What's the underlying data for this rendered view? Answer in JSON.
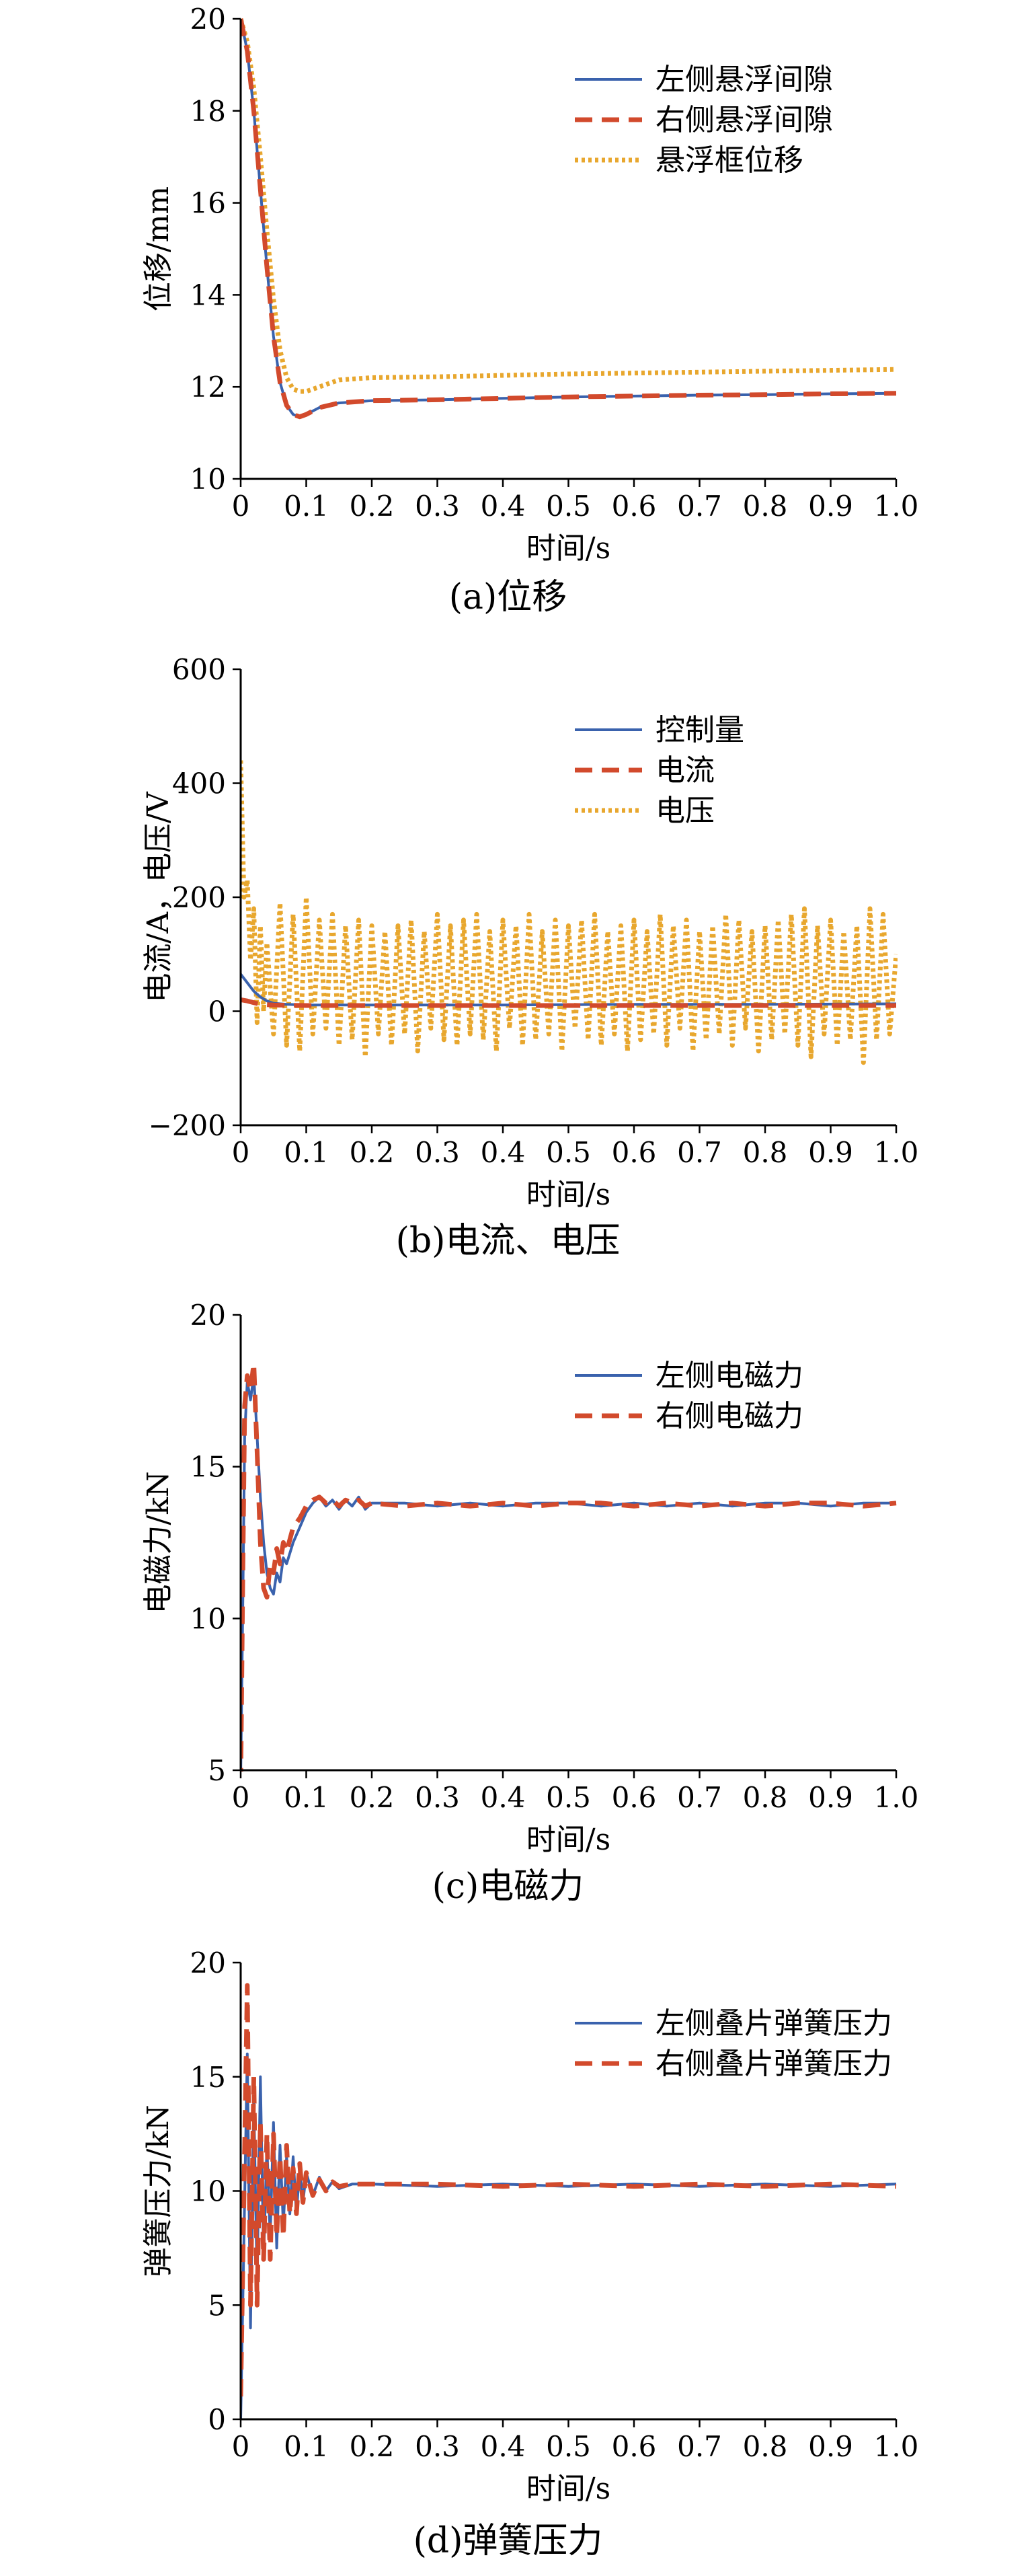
{
  "chart_data": [
    {
      "type": "line",
      "caption": "(a)位移",
      "xlabel": "时间/s",
      "ylabel": "位移/mm",
      "xlim": [
        0,
        1.0
      ],
      "ylim": [
        10,
        20
      ],
      "xticks": [
        "0",
        "0.1",
        "0.2",
        "0.3",
        "0.4",
        "0.5",
        "0.6",
        "0.7",
        "0.8",
        "0.9",
        "1.0"
      ],
      "yticks": [
        "10",
        "12",
        "14",
        "16",
        "18",
        "20"
      ],
      "legend": "top-right",
      "series": [
        {
          "name": "左侧悬浮间隙",
          "color": "#3a62ad",
          "style": "solid",
          "x": [
            0,
            0.01,
            0.02,
            0.03,
            0.04,
            0.05,
            0.06,
            0.07,
            0.08,
            0.09,
            0.1,
            0.12,
            0.15,
            0.2,
            0.3,
            0.4,
            0.5,
            0.6,
            0.7,
            0.8,
            0.9,
            1.0
          ],
          "y": [
            20,
            19.3,
            18.0,
            16.3,
            14.6,
            13.1,
            12.1,
            11.6,
            11.4,
            11.35,
            11.4,
            11.55,
            11.65,
            11.7,
            11.72,
            11.75,
            11.78,
            11.8,
            11.82,
            11.83,
            11.85,
            11.86
          ]
        },
        {
          "name": "右侧悬浮间隙",
          "color": "#d24a2c",
          "style": "dashed",
          "x": [
            0,
            0.01,
            0.02,
            0.03,
            0.04,
            0.05,
            0.06,
            0.07,
            0.08,
            0.09,
            0.1,
            0.12,
            0.15,
            0.2,
            0.3,
            0.4,
            0.5,
            0.6,
            0.7,
            0.8,
            0.9,
            1.0
          ],
          "y": [
            20,
            19.3,
            18.0,
            16.3,
            14.6,
            13.1,
            12.1,
            11.6,
            11.4,
            11.35,
            11.4,
            11.55,
            11.65,
            11.7,
            11.72,
            11.75,
            11.78,
            11.8,
            11.82,
            11.83,
            11.85,
            11.86
          ]
        },
        {
          "name": "悬浮框位移",
          "color": "#e8a72e",
          "style": "dotted",
          "x": [
            0,
            0.01,
            0.02,
            0.03,
            0.04,
            0.05,
            0.06,
            0.07,
            0.08,
            0.09,
            0.1,
            0.12,
            0.15,
            0.2,
            0.3,
            0.4,
            0.5,
            0.6,
            0.7,
            0.8,
            0.9,
            1.0
          ],
          "y": [
            20,
            19.5,
            18.5,
            17.0,
            15.4,
            13.9,
            12.8,
            12.2,
            11.95,
            11.9,
            11.9,
            12.0,
            12.15,
            12.2,
            12.22,
            12.25,
            12.28,
            12.3,
            12.32,
            12.34,
            12.36,
            12.38
          ]
        }
      ]
    },
    {
      "type": "line",
      "caption": "(b)电流、电压",
      "xlabel": "时间/s",
      "ylabel": "电流/A，电压/V",
      "xlim": [
        0,
        1.0
      ],
      "ylim": [
        -200,
        600
      ],
      "xticks": [
        "0",
        "0.1",
        "0.2",
        "0.3",
        "0.4",
        "0.5",
        "0.6",
        "0.7",
        "0.8",
        "0.9",
        "1.0"
      ],
      "yticks": [
        "−200",
        "0",
        "200",
        "400",
        "600"
      ],
      "legend": "top-right",
      "series": [
        {
          "name": "控制量",
          "color": "#3a62ad",
          "style": "solid",
          "x": [
            0,
            0.01,
            0.02,
            0.03,
            0.04,
            0.05,
            0.07,
            0.1,
            0.2,
            0.4,
            0.6,
            0.8,
            1.0
          ],
          "y": [
            65,
            50,
            35,
            25,
            18,
            14,
            12,
            11,
            11,
            11,
            12,
            12,
            13
          ]
        },
        {
          "name": "电流",
          "color": "#d24a2c",
          "style": "dashed",
          "x": [
            0,
            0.01,
            0.02,
            0.03,
            0.05,
            0.1,
            0.3,
            0.5,
            0.7,
            1.0
          ],
          "y": [
            20,
            18,
            15,
            12,
            11,
            10,
            10,
            10,
            10,
            10
          ]
        },
        {
          "name": "电压",
          "color": "#e8a72e",
          "style": "dotted",
          "x": [
            0,
            0.005,
            0.01,
            0.015,
            0.02,
            0.025,
            0.03,
            0.035,
            0.04,
            0.05,
            0.06,
            0.07,
            0.08,
            0.09,
            0.1,
            0.11,
            0.12,
            0.13,
            0.14,
            0.15,
            0.16,
            0.17,
            0.18,
            0.19,
            0.2,
            0.21,
            0.22,
            0.23,
            0.24,
            0.25,
            0.26,
            0.27,
            0.28,
            0.29,
            0.3,
            0.31,
            0.32,
            0.33,
            0.34,
            0.35,
            0.36,
            0.37,
            0.38,
            0.39,
            0.4,
            0.41,
            0.42,
            0.43,
            0.44,
            0.45,
            0.46,
            0.47,
            0.48,
            0.49,
            0.5,
            0.51,
            0.52,
            0.53,
            0.54,
            0.55,
            0.56,
            0.57,
            0.58,
            0.59,
            0.6,
            0.61,
            0.62,
            0.63,
            0.64,
            0.65,
            0.66,
            0.67,
            0.68,
            0.69,
            0.7,
            0.71,
            0.72,
            0.73,
            0.74,
            0.75,
            0.76,
            0.77,
            0.78,
            0.79,
            0.8,
            0.81,
            0.82,
            0.83,
            0.84,
            0.85,
            0.86,
            0.87,
            0.88,
            0.89,
            0.9,
            0.91,
            0.92,
            0.93,
            0.94,
            0.95,
            0.96,
            0.97,
            0.98,
            0.99,
            1.0
          ],
          "y": [
            440,
            200,
            230,
            90,
            180,
            -20,
            150,
            0,
            120,
            -40,
            190,
            -60,
            170,
            -70,
            200,
            -40,
            160,
            -30,
            170,
            -60,
            150,
            -50,
            160,
            -80,
            150,
            -40,
            140,
            -60,
            150,
            -40,
            160,
            -70,
            140,
            -30,
            170,
            -50,
            150,
            -60,
            160,
            -40,
            170,
            -50,
            140,
            -70,
            160,
            -30,
            150,
            -60,
            170,
            -50,
            140,
            -40,
            160,
            -70,
            150,
            -30,
            160,
            -50,
            170,
            -60,
            140,
            -40,
            150,
            -70,
            160,
            -50,
            140,
            -40,
            170,
            -60,
            150,
            -30,
            160,
            -70,
            140,
            -50,
            150,
            -40,
            170,
            -60,
            160,
            -30,
            140,
            -70,
            150,
            -50,
            160,
            -40,
            170,
            -60,
            180,
            -80,
            150,
            -40,
            160,
            -60,
            140,
            -50,
            150,
            -90,
            180,
            -50,
            170,
            -40,
            100
          ]
        }
      ]
    },
    {
      "type": "line",
      "caption": "(c)电磁力",
      "xlabel": "时间/s",
      "ylabel": "电磁力/kN",
      "xlim": [
        0,
        1.0
      ],
      "ylim": [
        5,
        20
      ],
      "xticks": [
        "0",
        "0.1",
        "0.2",
        "0.3",
        "0.4",
        "0.5",
        "0.6",
        "0.7",
        "0.8",
        "0.9",
        "1.0"
      ],
      "yticks": [
        "5",
        "10",
        "15",
        "20"
      ],
      "legend": "top-right",
      "series": [
        {
          "name": "左侧电磁力",
          "color": "#3a62ad",
          "style": "solid",
          "x": [
            0,
            0.003,
            0.006,
            0.01,
            0.015,
            0.02,
            0.025,
            0.03,
            0.035,
            0.04,
            0.045,
            0.05,
            0.055,
            0.06,
            0.065,
            0.07,
            0.08,
            0.09,
            0.1,
            0.11,
            0.12,
            0.13,
            0.14,
            0.15,
            0.16,
            0.17,
            0.18,
            0.19,
            0.2,
            0.25,
            0.3,
            0.35,
            0.4,
            0.45,
            0.5,
            0.55,
            0.6,
            0.65,
            0.7,
            0.75,
            0.8,
            0.85,
            0.9,
            0.95,
            1.0
          ],
          "y": [
            4.8,
            10,
            16,
            17.8,
            17.2,
            18.0,
            16.0,
            14.0,
            12.5,
            11.5,
            11.0,
            10.8,
            11.5,
            11.2,
            12.0,
            11.8,
            12.5,
            13.0,
            13.5,
            13.8,
            14.0,
            13.7,
            13.9,
            13.6,
            13.9,
            13.7,
            14.0,
            13.6,
            13.8,
            13.8,
            13.7,
            13.8,
            13.7,
            13.8,
            13.8,
            13.7,
            13.8,
            13.7,
            13.8,
            13.7,
            13.8,
            13.8,
            13.7,
            13.8,
            13.8
          ]
        },
        {
          "name": "右侧电磁力",
          "color": "#d24a2c",
          "style": "dashed",
          "x": [
            0,
            0.003,
            0.006,
            0.01,
            0.015,
            0.02,
            0.025,
            0.03,
            0.035,
            0.04,
            0.045,
            0.05,
            0.055,
            0.06,
            0.065,
            0.07,
            0.08,
            0.09,
            0.1,
            0.11,
            0.12,
            0.13,
            0.14,
            0.15,
            0.16,
            0.17,
            0.18,
            0.19,
            0.2,
            0.25,
            0.3,
            0.35,
            0.4,
            0.45,
            0.5,
            0.55,
            0.6,
            0.65,
            0.7,
            0.75,
            0.8,
            0.85,
            0.9,
            0.95,
            1.0
          ],
          "y": [
            4.5,
            11,
            17,
            18.0,
            17.5,
            18.4,
            15.5,
            12.5,
            11.0,
            10.7,
            11.8,
            11.5,
            12.3,
            11.8,
            12.5,
            12.2,
            13.0,
            13.3,
            13.7,
            13.9,
            14.0,
            13.8,
            13.9,
            13.7,
            13.9,
            13.8,
            13.9,
            13.7,
            13.8,
            13.7,
            13.8,
            13.7,
            13.8,
            13.7,
            13.8,
            13.8,
            13.7,
            13.8,
            13.7,
            13.8,
            13.7,
            13.8,
            13.8,
            13.7,
            13.8
          ]
        }
      ]
    },
    {
      "type": "line",
      "caption": "(d)弹簧压力",
      "xlabel": "时间/s",
      "ylabel": "弹簧压力/kN",
      "xlim": [
        0,
        1.0
      ],
      "ylim": [
        0,
        20
      ],
      "xticks": [
        "0",
        "0.1",
        "0.2",
        "0.3",
        "0.4",
        "0.5",
        "0.6",
        "0.7",
        "0.8",
        "0.9",
        "1.0"
      ],
      "yticks": [
        "0",
        "5",
        "10",
        "15",
        "20"
      ],
      "legend": "top-right",
      "series": [
        {
          "name": "左侧叠片弹簧压力",
          "color": "#3a62ad",
          "style": "solid",
          "x": [
            0,
            0.005,
            0.01,
            0.015,
            0.02,
            0.025,
            0.03,
            0.035,
            0.04,
            0.045,
            0.05,
            0.055,
            0.06,
            0.065,
            0.07,
            0.075,
            0.08,
            0.085,
            0.09,
            0.095,
            0.1,
            0.11,
            0.12,
            0.13,
            0.14,
            0.15,
            0.17,
            0.2,
            0.3,
            0.4,
            0.5,
            0.6,
            0.7,
            0.8,
            0.9,
            1.0
          ],
          "y": [
            0,
            8,
            16,
            4,
            14,
            6,
            15,
            7,
            12,
            8,
            13,
            7.5,
            12,
            8.5,
            11.5,
            9,
            11.5,
            9,
            11,
            9.5,
            10.8,
            9.8,
            10.6,
            10,
            10.4,
            10.1,
            10.3,
            10.3,
            10.2,
            10.3,
            10.2,
            10.3,
            10.2,
            10.3,
            10.2,
            10.3
          ]
        },
        {
          "name": "右侧叠片弹簧压力",
          "color": "#d24a2c",
          "style": "dashed",
          "x": [
            0,
            0.005,
            0.01,
            0.015,
            0.02,
            0.025,
            0.03,
            0.035,
            0.04,
            0.045,
            0.05,
            0.055,
            0.06,
            0.065,
            0.07,
            0.075,
            0.08,
            0.085,
            0.09,
            0.095,
            0.1,
            0.11,
            0.12,
            0.13,
            0.14,
            0.15,
            0.17,
            0.2,
            0.3,
            0.4,
            0.5,
            0.6,
            0.7,
            0.8,
            0.9,
            1.0
          ],
          "y": [
            1,
            10,
            19,
            5,
            15,
            5,
            13,
            7,
            12.5,
            7,
            12.5,
            8,
            11.5,
            8,
            12,
            9,
            11,
            9,
            11.2,
            9.5,
            10.8,
            9.8,
            10.5,
            10,
            10.4,
            10.2,
            10.3,
            10.3,
            10.3,
            10.2,
            10.3,
            10.2,
            10.3,
            10.2,
            10.3,
            10.2
          ]
        }
      ]
    }
  ]
}
